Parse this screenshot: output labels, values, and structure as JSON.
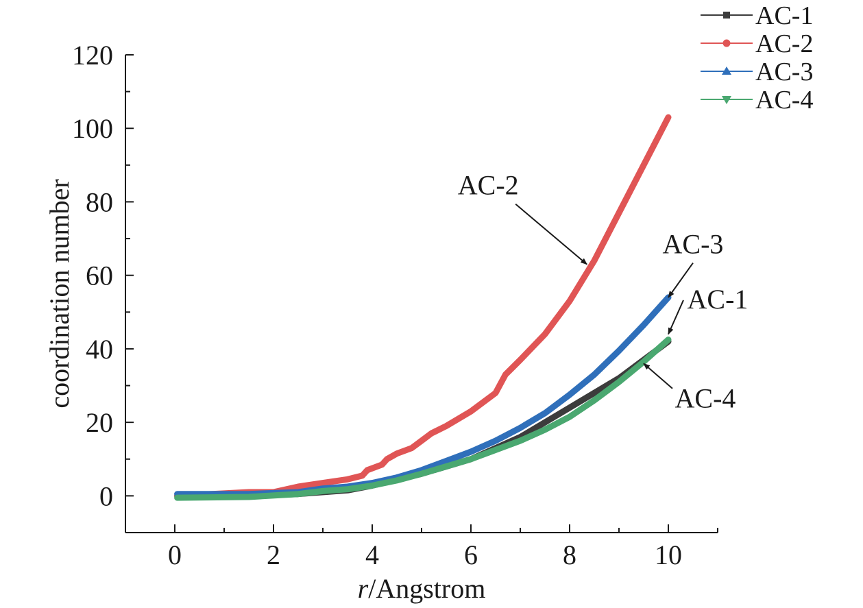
{
  "chart_data": {
    "type": "line",
    "xlabel_italic": "r",
    "xlabel_rest": "/Angstrom",
    "ylabel": "coordination number",
    "xlim": [
      -1,
      11
    ],
    "ylim": [
      -10,
      120
    ],
    "x_ticks": [
      0,
      2,
      4,
      6,
      8,
      10
    ],
    "y_ticks": [
      0,
      20,
      40,
      60,
      80,
      100,
      120
    ],
    "grid": false,
    "legend_position": "top-right",
    "series": [
      {
        "name": "AC-1",
        "color": "#3c3c3c",
        "marker": "square",
        "x": [
          0.05,
          1.5,
          2.5,
          3.5,
          4.0,
          5.0,
          6.0,
          7.0,
          8.0,
          9.0,
          10.0
        ],
        "y": [
          0,
          0,
          0.5,
          1.5,
          2.8,
          6,
          10,
          16,
          24,
          32,
          42
        ]
      },
      {
        "name": "AC-2",
        "color": "#e05555",
        "marker": "circle",
        "x": [
          0.05,
          1.5,
          2.0,
          2.5,
          3.0,
          3.5,
          3.8,
          3.9,
          4.0,
          4.2,
          4.3,
          4.5,
          4.8,
          5.0,
          5.2,
          5.5,
          6.0,
          6.5,
          6.7,
          7.0,
          7.5,
          8.0,
          8.5,
          9.0,
          9.5,
          10.0
        ],
        "y": [
          0,
          1,
          1,
          2.5,
          3.5,
          4.5,
          5.5,
          7,
          7.5,
          8.5,
          10,
          11.5,
          13,
          15,
          17,
          19,
          23,
          28,
          33,
          37,
          44,
          53,
          64,
          77,
          90,
          103
        ]
      },
      {
        "name": "AC-3",
        "color": "#2f6fba",
        "marker": "triangle-up",
        "x": [
          0.05,
          1.5,
          2.5,
          3.0,
          3.5,
          4.0,
          4.5,
          5.0,
          5.5,
          6.0,
          6.5,
          7.0,
          7.5,
          8.0,
          8.5,
          9.0,
          9.5,
          10.0
        ],
        "y": [
          0.5,
          0.5,
          1,
          2,
          2.5,
          3.5,
          5,
          7,
          9.5,
          12,
          15,
          18.5,
          22.5,
          27.5,
          33,
          39.5,
          46.5,
          54
        ]
      },
      {
        "name": "AC-4",
        "color": "#4aa870",
        "marker": "triangle-down",
        "x": [
          0.05,
          1.5,
          2.5,
          3.0,
          3.5,
          4.0,
          4.5,
          5.0,
          5.5,
          6.0,
          6.5,
          7.0,
          7.5,
          8.0,
          8.5,
          9.0,
          9.5,
          10.0
        ],
        "y": [
          -0.5,
          -0.3,
          0.5,
          1.3,
          1.8,
          2.8,
          4.2,
          6,
          8,
          10,
          12.5,
          15,
          18,
          21.5,
          26,
          31,
          36.5,
          42.5
        ]
      }
    ],
    "annotations": [
      {
        "text": "AC-2",
        "target_series": "AC-2",
        "target_x": 8.35,
        "target_y": 63,
        "label_x": 6.35,
        "label_y": 82
      },
      {
        "text": "AC-3",
        "target_series": "AC-3",
        "target_x": 10.0,
        "target_y": 54,
        "label_x": 10.5,
        "label_y": 66
      },
      {
        "text": "AC-1",
        "target_series": "AC-1",
        "target_x": 10.0,
        "target_y": 44,
        "label_x": 11.0,
        "label_y": 51
      },
      {
        "text": "AC-4",
        "target_series": "AC-4",
        "target_x": 9.5,
        "target_y": 36,
        "label_x": 10.75,
        "label_y": 24
      }
    ]
  }
}
